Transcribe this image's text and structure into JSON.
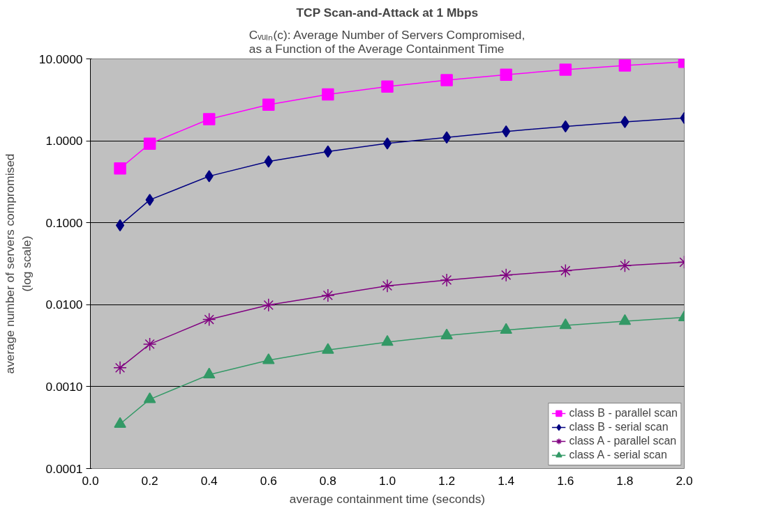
{
  "chart_data": {
    "type": "line",
    "title": "TCP Scan-and-Attack at 1 Mbps",
    "subtitle": "Cᵥᵤₗₙ(c): Average Number of Servers Compromised,\nas a Function of the Average Containment Time",
    "xlabel": "average containment time (seconds)",
    "ylabel": "average number of servers compromised\n(log scale)",
    "x": [
      0.1,
      0.2,
      0.4,
      0.6,
      0.8,
      1.0,
      1.2,
      1.4,
      1.6,
      1.8,
      2.0
    ],
    "series": [
      {
        "name": "class B - parallel scan",
        "color": "#ff00ff",
        "marker": "square",
        "values": [
          0.46,
          0.92,
          1.84,
          2.76,
          3.68,
          4.6,
          5.5,
          6.4,
          7.4,
          8.3,
          9.2
        ]
      },
      {
        "name": "class B - serial scan",
        "color": "#000080",
        "marker": "diamond",
        "values": [
          0.093,
          0.19,
          0.37,
          0.56,
          0.74,
          0.93,
          1.1,
          1.3,
          1.5,
          1.7,
          1.9
        ]
      },
      {
        "name": "class A - parallel scan",
        "color": "#800080",
        "marker": "cross",
        "values": [
          0.0017,
          0.0033,
          0.0066,
          0.0099,
          0.013,
          0.017,
          0.02,
          0.023,
          0.026,
          0.03,
          0.033
        ]
      },
      {
        "name": "class A - serial scan",
        "color": "#339966",
        "marker": "triangle",
        "values": [
          0.00035,
          0.0007,
          0.0014,
          0.0021,
          0.0028,
          0.0035,
          0.0042,
          0.0049,
          0.0056,
          0.0063,
          0.007
        ]
      }
    ],
    "log": "y",
    "xlim": [
      0.0,
      2.0
    ],
    "xticks": [
      {
        "value": 0,
        "label": "0.0"
      },
      0.2,
      0.4,
      0.6,
      0.8,
      {
        "value": 1,
        "label": "1.0"
      },
      1.2,
      1.4,
      1.6,
      1.8,
      {
        "value": 2,
        "label": "2.0"
      }
    ],
    "ylim": [
      0.0001,
      10
    ],
    "yticks": [
      {
        "value": 0.0001,
        "label": "0.0001"
      },
      {
        "value": 0.001,
        "label": "0.0010"
      },
      {
        "value": 0.01,
        "label": "0.0100"
      },
      {
        "value": 0.1,
        "label": "0.1000"
      },
      {
        "value": 1,
        "label": "1.0000"
      },
      {
        "value": 10,
        "label": "10.0000"
      }
    ],
    "grid": "y",
    "legend": "bottom right",
    "line_style": "solid"
  }
}
